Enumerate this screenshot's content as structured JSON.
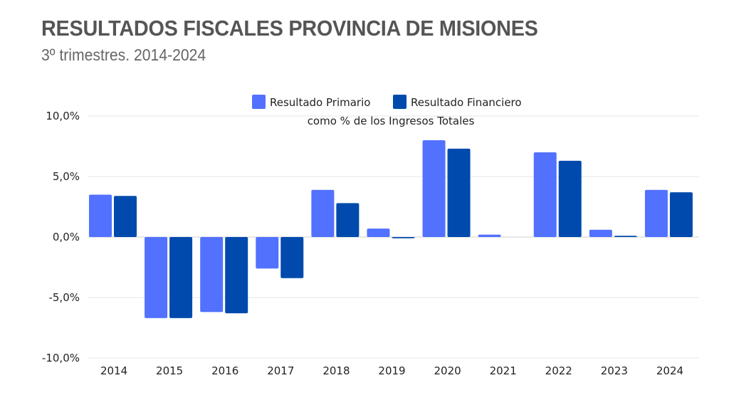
{
  "header": {
    "title": "RESULTADOS FISCALES PROVINCIA DE MISIONES",
    "subtitle": "3º trimestres. 2014-2024"
  },
  "chart_data": {
    "type": "bar",
    "title": "RESULTADOS FISCALES PROVINCIA DE MISIONES",
    "subtitle": "3º trimestres. 2014-2024",
    "annotation": "como % de los Ingresos Totales",
    "xlabel": "",
    "ylabel": "",
    "categories": [
      "2014",
      "2015",
      "2016",
      "2017",
      "2018",
      "2019",
      "2020",
      "2021",
      "2022",
      "2023",
      "2024"
    ],
    "series": [
      {
        "name": "Resultado Primario",
        "color": "#5271ff",
        "values": [
          3.5,
          -6.7,
          -6.2,
          -2.6,
          3.9,
          0.7,
          8.0,
          0.2,
          7.0,
          0.6,
          3.9
        ]
      },
      {
        "name": "Resultado Financiero",
        "color": "#004aad",
        "values": [
          3.4,
          -6.7,
          -6.3,
          -3.4,
          2.8,
          -0.1,
          7.3,
          0.0,
          6.3,
          0.1,
          3.7
        ]
      }
    ],
    "ylim": [
      -10,
      10
    ],
    "yticks": [
      10,
      5,
      0,
      -5,
      -10
    ],
    "ytick_labels": [
      "10,0%",
      "5,0%",
      "0,0%",
      "-5,0%",
      "-10,0%"
    ],
    "grid": true,
    "legend_position": "top-center"
  }
}
